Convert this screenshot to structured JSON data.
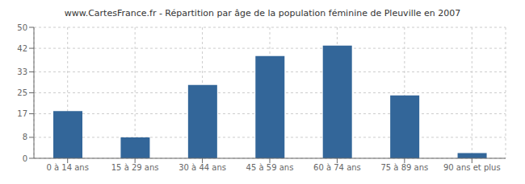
{
  "chart_data": {
    "type": "bar",
    "title": "www.CartesFrance.fr - Répartition par âge de la population féminine de Pleuville en 2007",
    "categories": [
      "0 à 14 ans",
      "15 à 29 ans",
      "30 à 44 ans",
      "45 à 59 ans",
      "60 à 74 ans",
      "75 à 89 ans",
      "90 ans et plus"
    ],
    "values": [
      18,
      8,
      28,
      39,
      43,
      24,
      2
    ],
    "color": "#336699",
    "ylim": [
      0,
      50
    ],
    "yticks": [
      0,
      8,
      17,
      25,
      33,
      42,
      50
    ],
    "grid": true
  }
}
